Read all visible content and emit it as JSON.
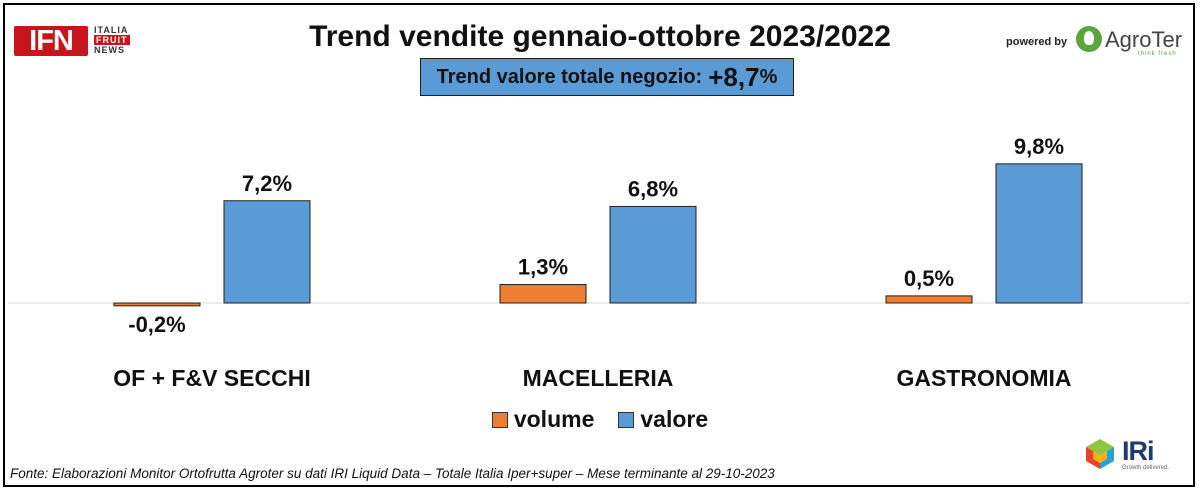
{
  "title": "Trend vendite gennaio-ottobre 2023/2022",
  "trend_box": {
    "label": "Trend valore totale negozio:",
    "value": "+8,7",
    "unit": "%"
  },
  "logos": {
    "ifn": {
      "text": "IFN",
      "line1": "ITALIA",
      "line2": "FRUIT",
      "line3": "NEWS"
    },
    "powered_by": "powered by",
    "agroter": {
      "name": "AgroTer",
      "tagline": "think fresh"
    },
    "iri": {
      "name": "IRi",
      "tagline": "Growth delivered."
    }
  },
  "source": "Fonte: Elaborazioni Monitor Ortofrutta Agroter su dati IRI Liquid Data – Totale Italia Iper+super – Mese terminante al 29-10-2023",
  "colors": {
    "volume": "#ed7d31",
    "valore": "#5b9bd5"
  },
  "chart_data": {
    "type": "bar",
    "categories": [
      "OF + F&V SECCHI",
      "MACELLERIA",
      "GASTRONOMIA"
    ],
    "series": [
      {
        "name": "volume",
        "values": [
          -0.2,
          1.3,
          0.5
        ],
        "labels": [
          "-0,2%",
          "1,3%",
          "0,5%"
        ]
      },
      {
        "name": "valore",
        "values": [
          7.2,
          6.8,
          9.8
        ],
        "labels": [
          "7,2%",
          "6,8%",
          "9,8%"
        ]
      }
    ],
    "title": "Trend vendite gennaio-ottobre 2023/2022",
    "xlabel": "",
    "ylabel": "",
    "ylim": [
      -0.2,
      9.8
    ],
    "grid": false,
    "legend": "bottom"
  }
}
